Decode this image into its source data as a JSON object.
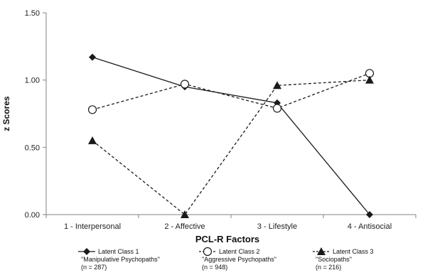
{
  "chart_data": {
    "type": "line",
    "xlabel": "PCL-R Factors",
    "ylabel": "z Scores",
    "categories": [
      "1 - Interpersonal",
      "2 - Affective",
      "3 - Lifestyle",
      "4 - Antisocial"
    ],
    "ylim": [
      0,
      1.5
    ],
    "yticks": [
      "0.00",
      "0.50",
      "1.00",
      "1.50"
    ],
    "grid": false,
    "legend_position": "bottom",
    "series": [
      {
        "name": "Latent Class 1",
        "subtitle": "\"Manipulative Psychopaths\"",
        "n": "(n = 287)",
        "marker": "diamond",
        "line": "solid",
        "values": [
          1.17,
          0.95,
          0.83,
          0.0
        ]
      },
      {
        "name": "Latent Class 2",
        "subtitle": "\"Aggressive Psychopaths\"",
        "n": "(n = 948)",
        "marker": "open-circle",
        "line": "dashed",
        "values": [
          0.78,
          0.97,
          0.79,
          1.05
        ]
      },
      {
        "name": "Latent Class 3",
        "subtitle": "\"Sociopaths\"",
        "n": "(n = 216)",
        "marker": "triangle",
        "line": "dashed",
        "values": [
          0.55,
          0.0,
          0.96,
          1.0
        ]
      }
    ],
    "colors": {
      "line": "#1a1a1a",
      "axis": "#808080"
    }
  }
}
